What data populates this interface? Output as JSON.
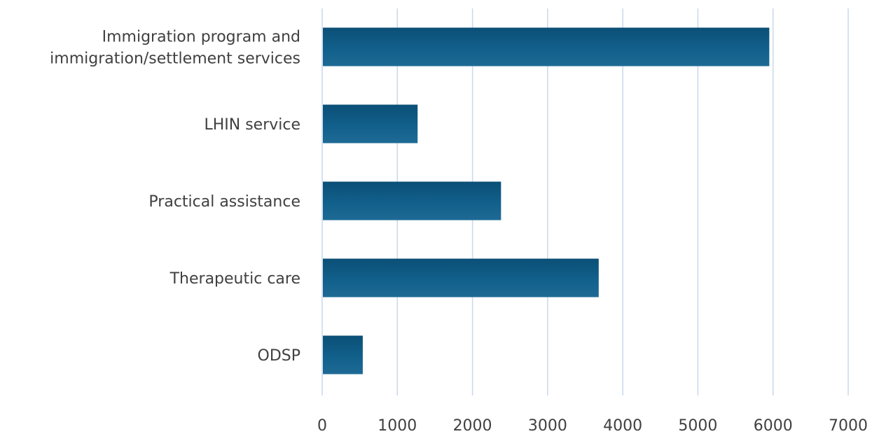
{
  "chart_data": {
    "type": "bar",
    "orientation": "horizontal",
    "categories": [
      [
        "Immigration program and",
        "immigration/settlement services"
      ],
      [
        "LHIN service"
      ],
      [
        "Practical assistance"
      ],
      [
        "Therapeutic care"
      ],
      [
        "ODSP"
      ]
    ],
    "values": [
      5950,
      1270,
      2380,
      3680,
      540
    ],
    "xlim": [
      0,
      7000
    ],
    "x_ticks": [
      "0",
      "1000",
      "2000",
      "3000",
      "4000",
      "5000",
      "6000",
      "7000"
    ],
    "grid": true,
    "legend": "none",
    "colors": {
      "bar_top": "#0b4f76",
      "bar_mid": "#11608b",
      "bar_bottom": "#1e6a95",
      "grid": "#c9d8ea",
      "text": "#404040"
    }
  }
}
